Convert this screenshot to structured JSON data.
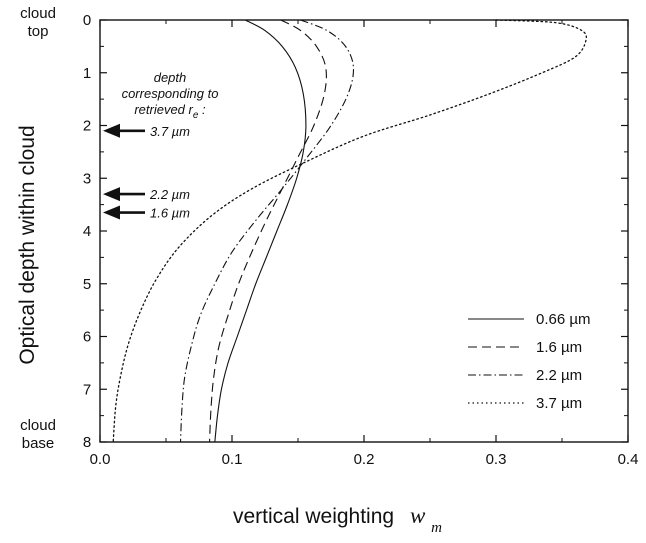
{
  "chart_data": {
    "type": "line",
    "title": "",
    "xlabel": "vertical weighting",
    "xlabel_symbol": "w",
    "xlabel_subscript": "m",
    "ylabel": "Optical depth within cloud",
    "xlim": [
      0.0,
      0.4
    ],
    "ylim": [
      8,
      0
    ],
    "y_inverted": true,
    "x_ticks": [
      "0.0",
      "0.1",
      "0.2",
      "0.3",
      "0.4"
    ],
    "y_ticks": [
      "0",
      "1",
      "2",
      "3",
      "4",
      "5",
      "6",
      "7",
      "8"
    ],
    "side_labels": {
      "top": [
        "cloud",
        "top"
      ],
      "bottom": [
        "cloud",
        "base"
      ]
    },
    "grid": false,
    "legend_position": "lower-right",
    "series": [
      {
        "name": "0.66 µm",
        "dash": "solid",
        "x": [
          0.11,
          0.125,
          0.138,
          0.148,
          0.154,
          0.156,
          0.154,
          0.149,
          0.142,
          0.134,
          0.126,
          0.118,
          0.111,
          0.104,
          0.097,
          0.092,
          0.089,
          0.087
        ],
        "y": [
          0,
          0.2,
          0.5,
          0.9,
          1.4,
          2.0,
          2.5,
          3.0,
          3.5,
          4.0,
          4.5,
          5.0,
          5.5,
          6.0,
          6.5,
          7.0,
          7.5,
          8.0
        ]
      },
      {
        "name": "1.6 µm",
        "dash": "dashed",
        "x": [
          0.137,
          0.152,
          0.164,
          0.171,
          0.17,
          0.162,
          0.15,
          0.138,
          0.126,
          0.115,
          0.105,
          0.097,
          0.09,
          0.086,
          0.084,
          0.083
        ],
        "y": [
          0,
          0.2,
          0.5,
          0.9,
          1.4,
          2.0,
          2.6,
          3.2,
          3.8,
          4.4,
          5.0,
          5.6,
          6.2,
          6.8,
          7.4,
          8.0
        ]
      },
      {
        "name": "2.2 µm",
        "dash": "dashdot",
        "x": [
          0.152,
          0.172,
          0.186,
          0.192,
          0.188,
          0.175,
          0.157,
          0.138,
          0.118,
          0.1,
          0.087,
          0.076,
          0.069,
          0.064,
          0.062,
          0.061
        ],
        "y": [
          0,
          0.2,
          0.5,
          0.9,
          1.4,
          2.0,
          2.6,
          3.2,
          3.8,
          4.4,
          5.0,
          5.6,
          6.2,
          6.8,
          7.4,
          8.0
        ]
      },
      {
        "name": "3.7 µm",
        "dash": "dotted",
        "x": [
          0.3,
          0.345,
          0.365,
          0.368,
          0.36,
          0.335,
          0.295,
          0.25,
          0.2,
          0.155,
          0.115,
          0.085,
          0.06,
          0.043,
          0.031,
          0.022,
          0.016,
          0.012,
          0.01
        ],
        "y": [
          0,
          0.05,
          0.2,
          0.4,
          0.7,
          1.0,
          1.4,
          1.8,
          2.2,
          2.7,
          3.2,
          3.7,
          4.3,
          4.9,
          5.5,
          6.1,
          6.7,
          7.3,
          8.0
        ]
      }
    ],
    "annotation": {
      "lines": [
        "depth",
        "corresponding to",
        "retrieved r"
      ],
      "subscript": "e",
      "suffix": " :",
      "arrows": [
        {
          "label": "3.7 µm",
          "depth": 2.1
        },
        {
          "label": "2.2 µm",
          "depth": 3.3
        },
        {
          "label": "1.6 µm",
          "depth": 3.65
        }
      ]
    }
  }
}
